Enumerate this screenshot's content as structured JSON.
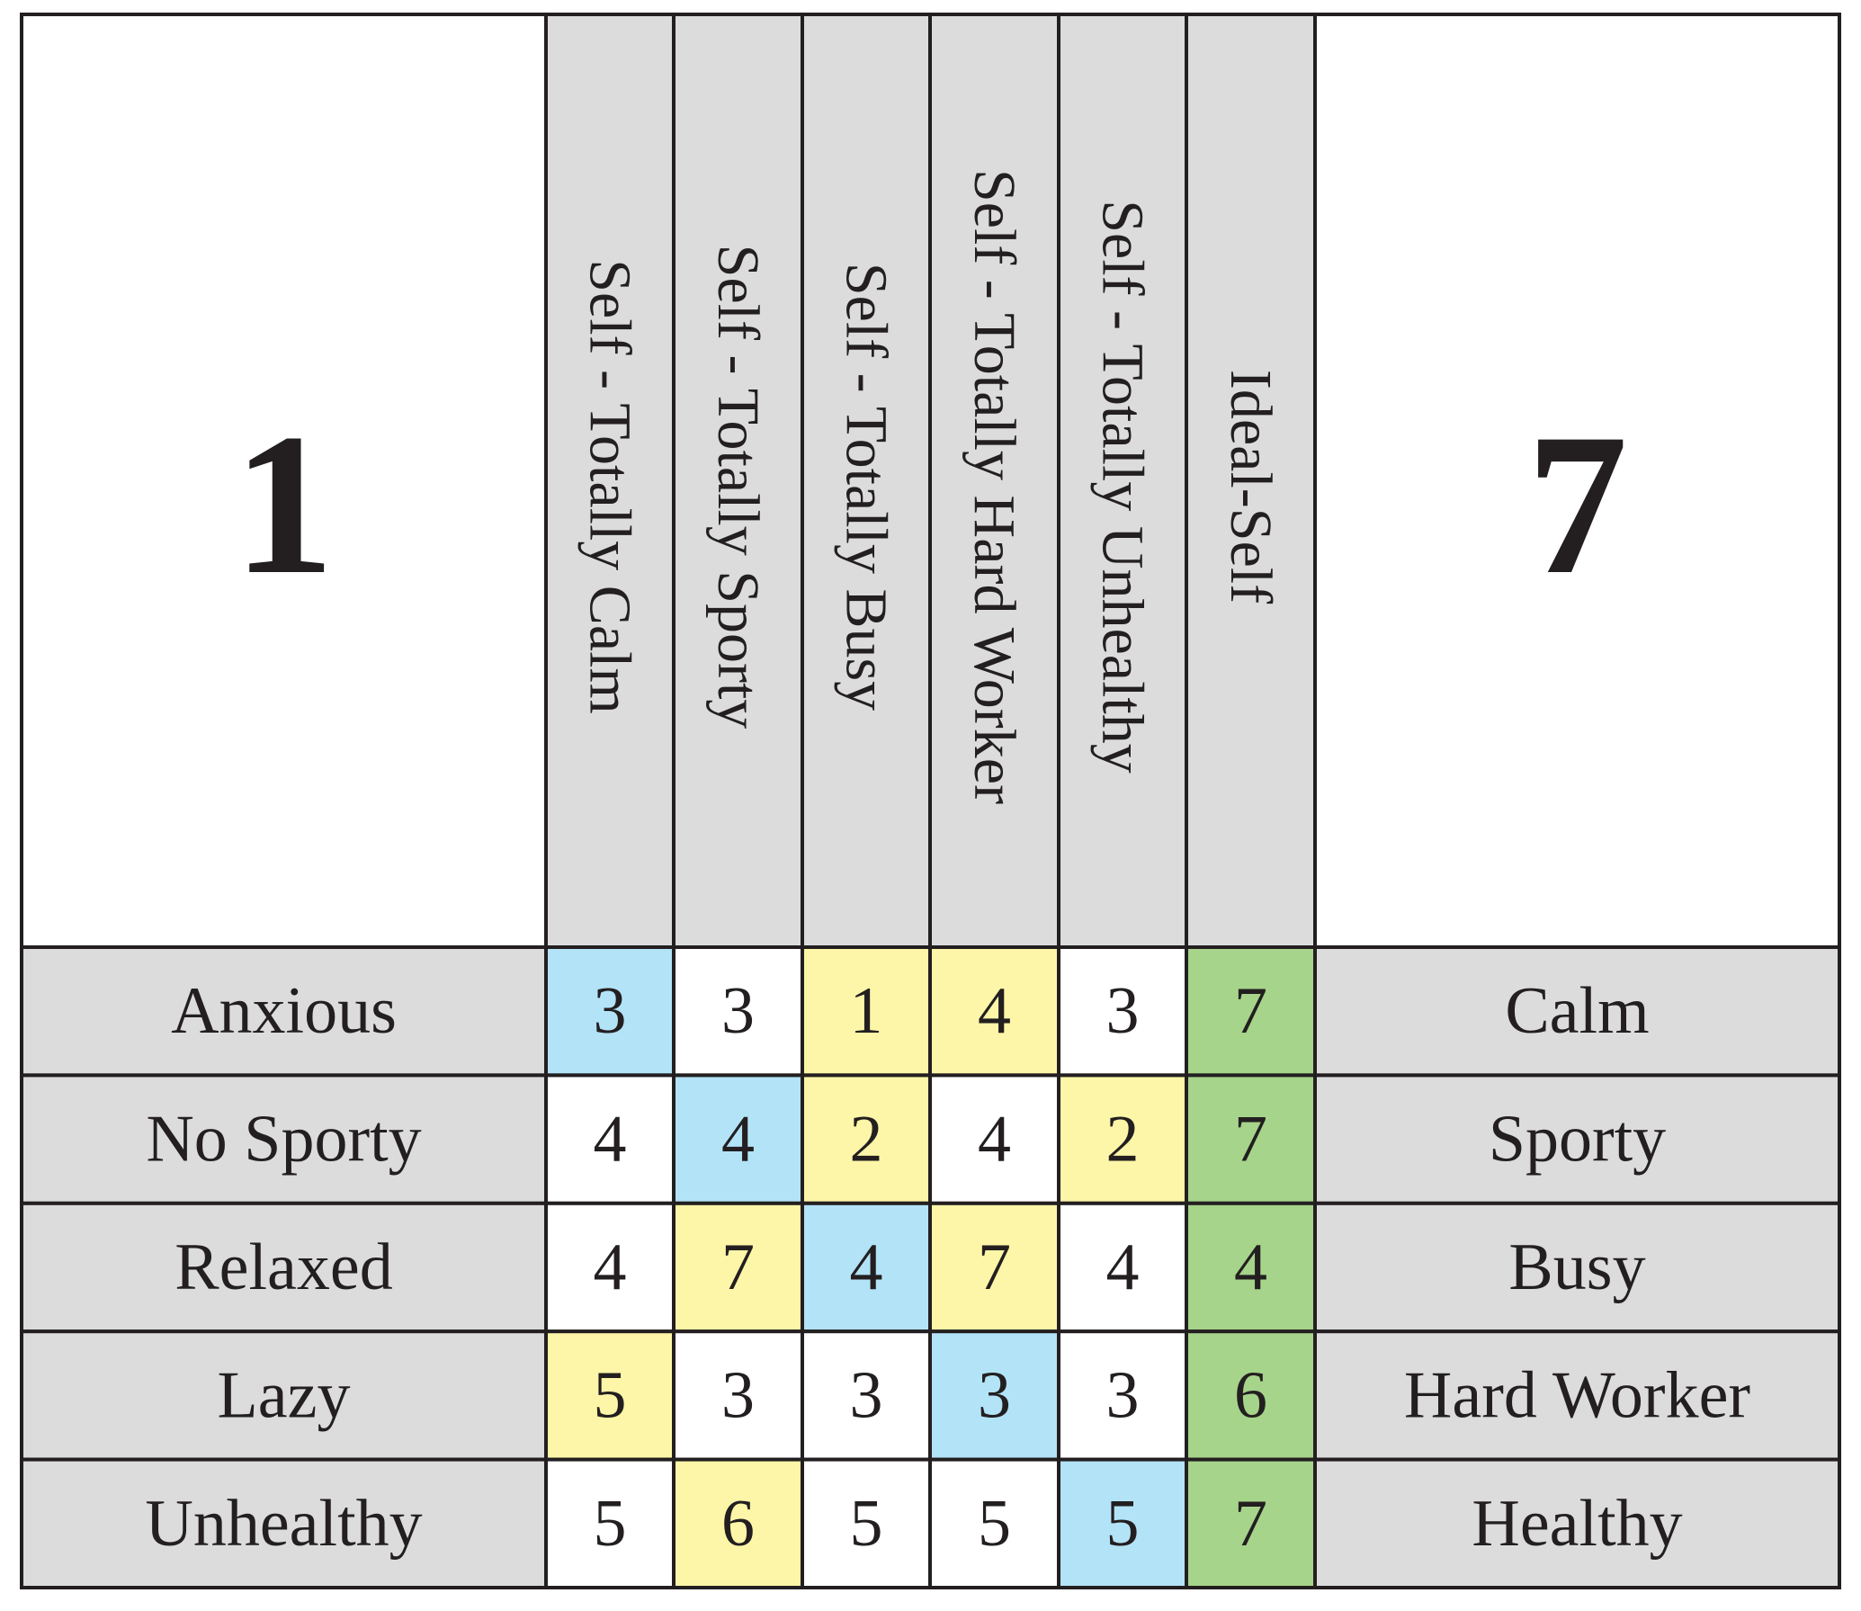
{
  "header": {
    "left": 1,
    "right": 7,
    "columns": [
      "Self - Totally Calm",
      "Self - Totally Sporty",
      "Self - Totally Busy",
      "Self - Totally Hard Worker",
      "Self - Totally Unhealthy",
      "Ideal-Self"
    ],
    "fill": "#dcdcdd"
  },
  "rows": [
    {
      "left": "Anxious",
      "values": [
        3,
        3,
        1,
        4,
        3,
        7
      ],
      "fills": [
        "#b3e3f7",
        "#ffffff",
        "#fdf6a8",
        "#fdf6a8",
        "#ffffff",
        "#a6d48a"
      ],
      "right": "Calm"
    },
    {
      "left": "No Sporty",
      "values": [
        4,
        4,
        2,
        4,
        2,
        7
      ],
      "fills": [
        "#ffffff",
        "#b3e3f7",
        "#fdf6a8",
        "#ffffff",
        "#fdf6a8",
        "#a6d48a"
      ],
      "right": "Sporty"
    },
    {
      "left": "Relaxed",
      "values": [
        4,
        7,
        4,
        7,
        4,
        4
      ],
      "fills": [
        "#ffffff",
        "#fdf6a8",
        "#b3e3f7",
        "#fdf6a8",
        "#ffffff",
        "#a6d48a"
      ],
      "right": "Busy"
    },
    {
      "left": "Lazy",
      "values": [
        5,
        3,
        3,
        3,
        3,
        6
      ],
      "fills": [
        "#fdf6a8",
        "#ffffff",
        "#ffffff",
        "#b3e3f7",
        "#ffffff",
        "#a6d48a"
      ],
      "right": "Hard Worker"
    },
    {
      "left": "Unhealthy",
      "values": [
        5,
        6,
        5,
        5,
        5,
        7
      ],
      "fills": [
        "#ffffff",
        "#fdf6a8",
        "#ffffff",
        "#ffffff",
        "#b3e3f7",
        "#a6d48a"
      ],
      "right": "Healthy"
    }
  ]
}
